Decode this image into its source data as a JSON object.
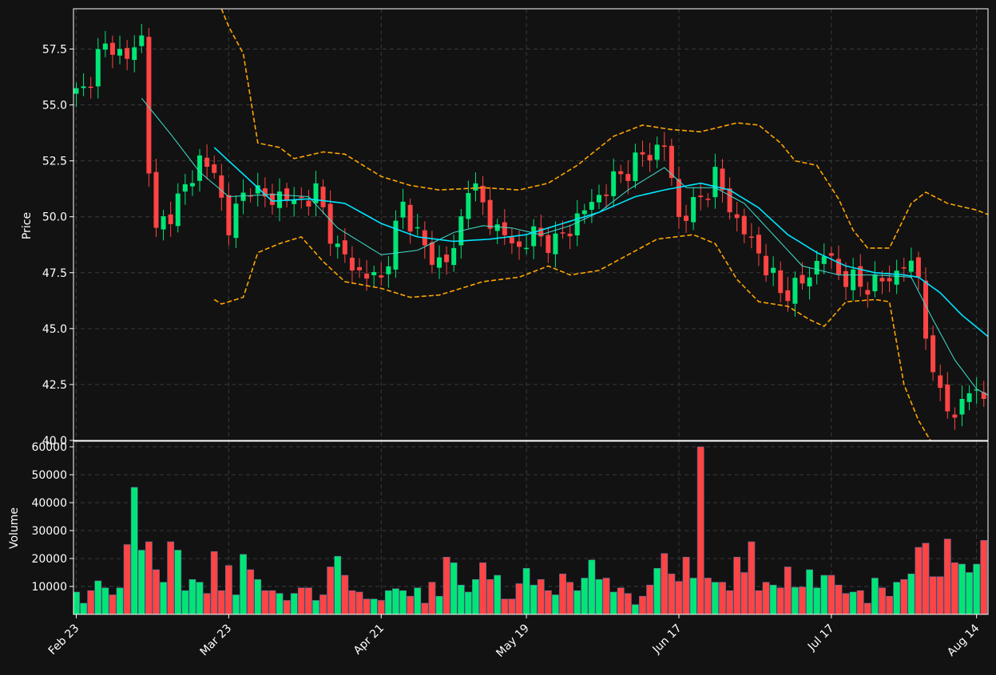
{
  "chart_data": [
    {
      "type": "candlestick",
      "ylabel": "Price",
      "ylim": [
        40.0,
        59.3
      ],
      "y_ticks": [
        "40.0",
        "42.5",
        "45.0",
        "47.5",
        "50.0",
        "52.5",
        "55.0",
        "57.5"
      ],
      "x_tick_labels": [
        "Feb 23",
        "Mar 23",
        "Apr 21",
        "May 19",
        "Jun 17",
        "Jul 17",
        "Aug 14"
      ],
      "bar_count": 129,
      "x_tick_bar_index": [
        0,
        21,
        42,
        62,
        83,
        104,
        124
      ],
      "grid": true,
      "colors": {
        "up": "#00e676",
        "down": "#ff4444",
        "ma_short": "#40e0d0",
        "ma_long": "#00e5ff",
        "bands": "#ffa500"
      },
      "price_anchors": [
        [
          0,
          55.5
        ],
        [
          1,
          55.6
        ],
        [
          3,
          57.2
        ],
        [
          5,
          57.7
        ],
        [
          7,
          57.0
        ],
        [
          8,
          57.6
        ],
        [
          9,
          58.0
        ],
        [
          10,
          52.3
        ],
        [
          11,
          49.2
        ],
        [
          12,
          49.8
        ],
        [
          15,
          51.2
        ],
        [
          17,
          52.6
        ],
        [
          19,
          51.9
        ],
        [
          21,
          49.6
        ],
        [
          24,
          51.5
        ],
        [
          26,
          50.7
        ],
        [
          28,
          51.0
        ],
        [
          30,
          50.6
        ],
        [
          33,
          51.1
        ],
        [
          36,
          48.5
        ],
        [
          39,
          47.5
        ],
        [
          42,
          47.2
        ],
        [
          45,
          50.5
        ],
        [
          49,
          48.0
        ],
        [
          52,
          48.3
        ],
        [
          54,
          51.6
        ],
        [
          58,
          49.4
        ],
        [
          61,
          48.6
        ],
        [
          63,
          49.2
        ],
        [
          66,
          48.8
        ],
        [
          70,
          50.3
        ],
        [
          74,
          51.6
        ],
        [
          78,
          52.7
        ],
        [
          81,
          53.2
        ],
        [
          83,
          50.0
        ],
        [
          85,
          50.4
        ],
        [
          88,
          51.8
        ],
        [
          91,
          49.8
        ],
        [
          94,
          48.4
        ],
        [
          97,
          46.6
        ],
        [
          100,
          47.0
        ],
        [
          103,
          48.4
        ],
        [
          105,
          47.5
        ],
        [
          108,
          46.9
        ],
        [
          112,
          47.2
        ],
        [
          114,
          47.9
        ],
        [
          116,
          47.4
        ],
        [
          117,
          45.0
        ],
        [
          118,
          42.5
        ],
        [
          119,
          42.4
        ],
        [
          120,
          41.7
        ],
        [
          121,
          40.7
        ],
        [
          122,
          41.9
        ],
        [
          124,
          42.3
        ],
        [
          126,
          41.9
        ],
        [
          128,
          41.0
        ]
      ],
      "moving_average_short": [
        [
          9,
          55.3
        ],
        [
          13,
          53.7
        ],
        [
          17,
          52.0
        ],
        [
          21,
          50.9
        ],
        [
          27,
          51.0
        ],
        [
          32,
          50.9
        ],
        [
          36,
          49.5
        ],
        [
          42,
          48.3
        ],
        [
          47,
          48.5
        ],
        [
          52,
          49.3
        ],
        [
          56,
          49.6
        ],
        [
          60,
          49.5
        ],
        [
          64,
          49.2
        ],
        [
          68,
          49.6
        ],
        [
          72,
          50.2
        ],
        [
          76,
          51.2
        ],
        [
          81,
          52.2
        ],
        [
          84,
          51.3
        ],
        [
          88,
          51.3
        ],
        [
          92,
          50.6
        ],
        [
          96,
          49.2
        ],
        [
          100,
          47.8
        ],
        [
          105,
          47.4
        ],
        [
          110,
          47.4
        ],
        [
          115,
          47.3
        ],
        [
          118,
          45.4
        ],
        [
          121,
          43.6
        ],
        [
          124,
          42.3
        ],
        [
          128,
          41.6
        ]
      ],
      "moving_average_long": [
        [
          19,
          53.1
        ],
        [
          23,
          51.9
        ],
        [
          27,
          50.7
        ],
        [
          32,
          50.8
        ],
        [
          37,
          50.6
        ],
        [
          42,
          49.7
        ],
        [
          47,
          49.1
        ],
        [
          52,
          48.9
        ],
        [
          57,
          49.0
        ],
        [
          62,
          49.2
        ],
        [
          67,
          49.7
        ],
        [
          72,
          50.2
        ],
        [
          77,
          50.9
        ],
        [
          81,
          51.2
        ],
        [
          86,
          51.5
        ],
        [
          90,
          51.2
        ],
        [
          94,
          50.4
        ],
        [
          98,
          49.2
        ],
        [
          102,
          48.4
        ],
        [
          106,
          47.8
        ],
        [
          110,
          47.5
        ],
        [
          114,
          47.4
        ],
        [
          116,
          47.3
        ],
        [
          119,
          46.6
        ],
        [
          122,
          45.6
        ],
        [
          125,
          44.8
        ],
        [
          128,
          44.0
        ]
      ],
      "band_upper": [
        [
          20,
          59.3
        ],
        [
          21,
          58.5
        ],
        [
          23,
          57.3
        ],
        [
          25,
          53.3
        ],
        [
          28,
          53.1
        ],
        [
          30,
          52.6
        ],
        [
          34,
          52.9
        ],
        [
          37,
          52.8
        ],
        [
          42,
          51.8
        ],
        [
          46,
          51.4
        ],
        [
          50,
          51.2
        ],
        [
          56,
          51.3
        ],
        [
          61,
          51.2
        ],
        [
          65,
          51.5
        ],
        [
          69,
          52.3
        ],
        [
          74,
          53.6
        ],
        [
          78,
          54.1
        ],
        [
          82,
          53.9
        ],
        [
          86,
          53.8
        ],
        [
          91,
          54.2
        ],
        [
          94,
          54.1
        ],
        [
          97,
          53.3
        ],
        [
          99,
          52.5
        ],
        [
          102,
          52.3
        ],
        [
          105,
          50.8
        ],
        [
          107,
          49.4
        ],
        [
          109,
          48.6
        ],
        [
          112,
          48.6
        ],
        [
          115,
          50.6
        ],
        [
          117,
          51.1
        ],
        [
          120,
          50.6
        ],
        [
          124,
          50.3
        ],
        [
          128,
          49.8
        ]
      ],
      "band_lower": [
        [
          19,
          46.3
        ],
        [
          20,
          46.1
        ],
        [
          23,
          46.4
        ],
        [
          25,
          48.4
        ],
        [
          28,
          48.8
        ],
        [
          31,
          49.1
        ],
        [
          34,
          48.0
        ],
        [
          37,
          47.1
        ],
        [
          42,
          46.8
        ],
        [
          46,
          46.4
        ],
        [
          50,
          46.5
        ],
        [
          56,
          47.1
        ],
        [
          61,
          47.3
        ],
        [
          65,
          47.8
        ],
        [
          68,
          47.4
        ],
        [
          72,
          47.6
        ],
        [
          76,
          48.3
        ],
        [
          80,
          49.0
        ],
        [
          85,
          49.2
        ],
        [
          88,
          48.8
        ],
        [
          91,
          47.2
        ],
        [
          94,
          46.2
        ],
        [
          98,
          46.0
        ],
        [
          101,
          45.4
        ],
        [
          103,
          45.1
        ],
        [
          106,
          46.2
        ],
        [
          110,
          46.3
        ],
        [
          112,
          46.2
        ],
        [
          114,
          42.5
        ],
        [
          116,
          40.9
        ],
        [
          118,
          39.8
        ],
        [
          120,
          38.9
        ]
      ]
    },
    {
      "type": "bar",
      "ylabel": "Volume",
      "ylim": [
        0,
        62000
      ],
      "y_ticks": [
        "10000",
        "20000",
        "30000",
        "40000",
        "50000",
        "60000"
      ],
      "grid": true,
      "values": [
        8000,
        4000,
        8500,
        12000,
        9500,
        7000,
        9500,
        25000,
        45500,
        23000,
        26000,
        16000,
        11500,
        26000,
        23000,
        8500,
        12500,
        11500,
        7500,
        22500,
        8500,
        17500,
        7000,
        21500,
        16000,
        12500,
        8500,
        8500,
        7500,
        5000,
        7500,
        9500,
        9500,
        5000,
        7000,
        17000,
        20800,
        14000,
        8500,
        8000,
        5500,
        5500,
        5000,
        8500,
        9200,
        8500,
        6500,
        9500,
        4000,
        11500,
        6500,
        20500,
        18500,
        10500,
        8000,
        12500,
        18500,
        12500,
        14000,
        5500,
        5500,
        11000,
        16500,
        10500,
        12500,
        8500,
        7000,
        14500,
        11500,
        8500,
        13000,
        19500,
        12500,
        13000,
        8000,
        9500,
        7500,
        3500,
        6500,
        10500,
        16500,
        21800,
        14500,
        11800,
        20500,
        13000,
        60000,
        13000,
        11500,
        11500,
        8500,
        20500,
        15000,
        26000,
        8500,
        11500,
        10500,
        9500,
        17000,
        9700,
        9800,
        16000,
        9500,
        14000,
        14000,
        10500,
        7500,
        8000,
        8500,
        4000,
        13000,
        9500,
        6500,
        11500,
        12500,
        14500,
        24000,
        25500,
        13500,
        13500,
        27000,
        18500,
        18000,
        15000,
        18000,
        26500,
        12000,
        16000,
        11000
      ]
    }
  ]
}
